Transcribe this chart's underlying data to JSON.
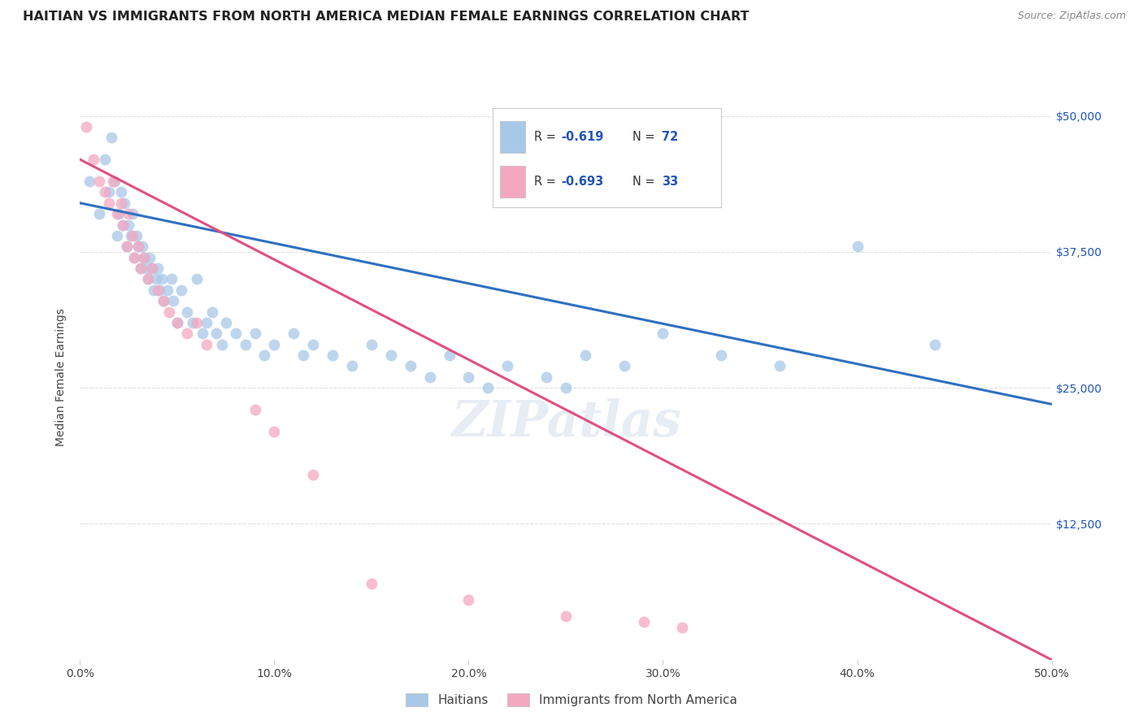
{
  "title": "HAITIAN VS IMMIGRANTS FROM NORTH AMERICA MEDIAN FEMALE EARNINGS CORRELATION CHART",
  "source": "Source: ZipAtlas.com",
  "ylabel": "Median Female Earnings",
  "yticks": [
    0,
    12500,
    25000,
    37500,
    50000
  ],
  "ytick_labels": [
    "",
    "$12,500",
    "$25,000",
    "$37,500",
    "$50,000"
  ],
  "xlim": [
    0.0,
    0.5
  ],
  "ylim": [
    0,
    52000
  ],
  "watermark": "ZIPatlas",
  "legend_blue_rval": "-0.619",
  "legend_blue_nval": "72",
  "legend_pink_rval": "-0.693",
  "legend_pink_nval": "33",
  "blue_color": "#a8c8e8",
  "pink_color": "#f4a8c0",
  "blue_line_color": "#3070c0",
  "pink_line_color": "#e05080",
  "label_blue": "Haitians",
  "label_pink": "Immigrants from North America",
  "blue_scatter_x": [
    0.005,
    0.01,
    0.013,
    0.015,
    0.016,
    0.018,
    0.019,
    0.02,
    0.021,
    0.022,
    0.023,
    0.024,
    0.025,
    0.026,
    0.027,
    0.028,
    0.029,
    0.03,
    0.031,
    0.032,
    0.033,
    0.034,
    0.035,
    0.036,
    0.037,
    0.038,
    0.039,
    0.04,
    0.041,
    0.042,
    0.043,
    0.045,
    0.047,
    0.048,
    0.05,
    0.052,
    0.055,
    0.058,
    0.06,
    0.063,
    0.065,
    0.068,
    0.07,
    0.073,
    0.075,
    0.08,
    0.085,
    0.09,
    0.095,
    0.1,
    0.11,
    0.115,
    0.12,
    0.13,
    0.14,
    0.15,
    0.16,
    0.17,
    0.18,
    0.19,
    0.2,
    0.21,
    0.22,
    0.24,
    0.25,
    0.26,
    0.28,
    0.3,
    0.33,
    0.36,
    0.4,
    0.44
  ],
  "blue_scatter_y": [
    44000,
    41000,
    46000,
    43000,
    48000,
    44000,
    39000,
    41000,
    43000,
    40000,
    42000,
    38000,
    40000,
    39000,
    41000,
    37000,
    39000,
    38000,
    36000,
    38000,
    37000,
    36000,
    35000,
    37000,
    36000,
    34000,
    35000,
    36000,
    34000,
    35000,
    33000,
    34000,
    35000,
    33000,
    31000,
    34000,
    32000,
    31000,
    35000,
    30000,
    31000,
    32000,
    30000,
    29000,
    31000,
    30000,
    29000,
    30000,
    28000,
    29000,
    30000,
    28000,
    29000,
    28000,
    27000,
    29000,
    28000,
    27000,
    26000,
    28000,
    26000,
    25000,
    27000,
    26000,
    25000,
    28000,
    27000,
    30000,
    28000,
    27000,
    38000,
    29000
  ],
  "pink_scatter_x": [
    0.003,
    0.007,
    0.01,
    0.013,
    0.015,
    0.017,
    0.019,
    0.021,
    0.022,
    0.024,
    0.025,
    0.027,
    0.028,
    0.03,
    0.031,
    0.033,
    0.035,
    0.037,
    0.04,
    0.043,
    0.046,
    0.05,
    0.055,
    0.06,
    0.065,
    0.09,
    0.1,
    0.12,
    0.15,
    0.2,
    0.25,
    0.29,
    0.31
  ],
  "pink_scatter_y": [
    49000,
    46000,
    44000,
    43000,
    42000,
    44000,
    41000,
    42000,
    40000,
    38000,
    41000,
    39000,
    37000,
    38000,
    36000,
    37000,
    35000,
    36000,
    34000,
    33000,
    32000,
    31000,
    30000,
    31000,
    29000,
    23000,
    21000,
    17000,
    7000,
    5500,
    4000,
    3500,
    3000
  ],
  "blue_trend_x": [
    0.0,
    0.5
  ],
  "blue_trend_y": [
    42000,
    23500
  ],
  "pink_trend_x": [
    0.0,
    0.5
  ],
  "pink_trend_y": [
    46000,
    0
  ],
  "grid_color": "#e0e0e0",
  "background_color": "#ffffff",
  "title_fontsize": 11.5,
  "axis_label_fontsize": 10,
  "tick_fontsize": 10,
  "source_fontsize": 9,
  "watermark_fontsize": 44,
  "watermark_color": "#c8d8e8",
  "watermark_alpha": 0.45
}
